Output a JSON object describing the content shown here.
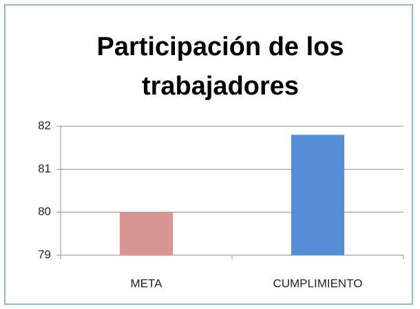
{
  "chart_data": {
    "type": "bar",
    "title": "Participación de los trabajadores",
    "categories": [
      "META",
      "CUMPLIMIENTO"
    ],
    "values": [
      80,
      81.8
    ],
    "colors": [
      "#d99594",
      "#558ed5"
    ],
    "ylim": [
      79,
      82
    ],
    "yticks": [
      79,
      80,
      81,
      82
    ],
    "grid": true
  }
}
